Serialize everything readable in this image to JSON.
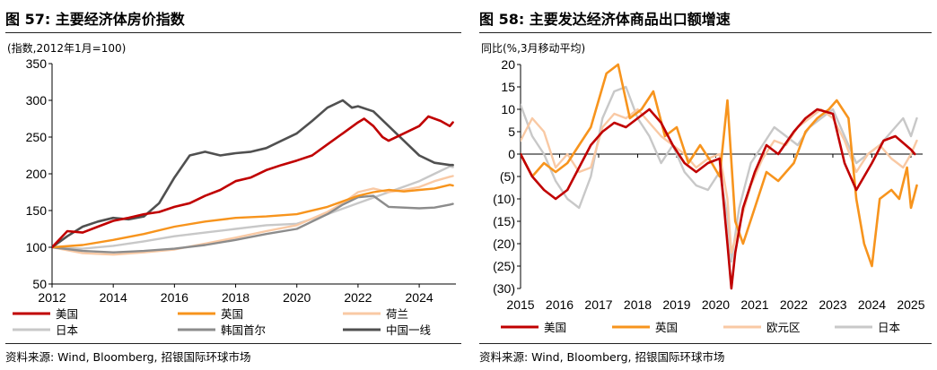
{
  "left": {
    "title": "图 57: 主要经济体房价指数",
    "source": "资料来源: Wind, Bloomberg, 招银国际环球市场",
    "chart_data": {
      "type": "line",
      "title": "主要经济体房价指数",
      "unit_label": "(指数,2012年1月=100)",
      "x_ticks": [
        "2012",
        "2014",
        "2016",
        "2018",
        "2020",
        "2022",
        "2024"
      ],
      "xlim": [
        2012,
        2025.2
      ],
      "y_ticks": [
        "50",
        "100",
        "150",
        "200",
        "250",
        "300",
        "350"
      ],
      "ylim": [
        50,
        350
      ],
      "legend_position": "bottom",
      "series": [
        {
          "name": "美国",
          "color": "#c00000",
          "width": 2.6,
          "x": [
            2012,
            2012.5,
            2013,
            2013.5,
            2014,
            2014.5,
            2015,
            2015.5,
            2016,
            2016.5,
            2017,
            2017.5,
            2018,
            2018.5,
            2019,
            2019.5,
            2020,
            2020.5,
            2021,
            2021.5,
            2022,
            2022.2,
            2022.5,
            2022.8,
            2023,
            2023.5,
            2024,
            2024.3,
            2024.7,
            2025,
            2025.1
          ],
          "values": [
            100,
            122,
            120,
            128,
            136,
            140,
            145,
            148,
            155,
            160,
            170,
            178,
            190,
            195,
            205,
            212,
            218,
            225,
            240,
            255,
            270,
            275,
            265,
            250,
            245,
            255,
            265,
            278,
            272,
            265,
            270
          ]
        },
        {
          "name": "英国",
          "color": "#f7941d",
          "width": 2.4,
          "x": [
            2012,
            2013,
            2014,
            2015,
            2016,
            2017,
            2018,
            2019,
            2020,
            2021,
            2022,
            2022.5,
            2023,
            2023.5,
            2024,
            2024.5,
            2025,
            2025.1
          ],
          "values": [
            100,
            103,
            110,
            118,
            128,
            135,
            140,
            142,
            145,
            155,
            170,
            175,
            178,
            176,
            178,
            180,
            185,
            184
          ]
        },
        {
          "name": "荷兰",
          "color": "#f9c9a4",
          "width": 2.4,
          "x": [
            2012,
            2013,
            2014,
            2015,
            2016,
            2017,
            2018,
            2019,
            2020,
            2021,
            2021.5,
            2022,
            2022.5,
            2023,
            2023.5,
            2024,
            2024.5,
            2025,
            2025.1
          ],
          "values": [
            100,
            92,
            90,
            93,
            97,
            105,
            113,
            122,
            130,
            148,
            160,
            175,
            180,
            175,
            178,
            182,
            190,
            196,
            197
          ]
        },
        {
          "name": "日本",
          "color": "#c8c8c8",
          "width": 2.4,
          "x": [
            2012,
            2013,
            2014,
            2015,
            2016,
            2017,
            2018,
            2019,
            2020,
            2021,
            2022,
            2023,
            2024,
            2024.5,
            2025,
            2025.1
          ],
          "values": [
            100,
            98,
            102,
            108,
            115,
            120,
            125,
            130,
            132,
            145,
            160,
            175,
            190,
            200,
            210,
            209
          ]
        },
        {
          "name": "韩国首尔",
          "color": "#8c8c8c",
          "width": 2.4,
          "x": [
            2012,
            2013,
            2014,
            2015,
            2016,
            2017,
            2018,
            2019,
            2020,
            2021,
            2021.5,
            2022,
            2022.5,
            2023,
            2024,
            2024.5,
            2025,
            2025.1
          ],
          "values": [
            100,
            95,
            93,
            95,
            98,
            103,
            110,
            118,
            125,
            145,
            158,
            168,
            170,
            155,
            153,
            154,
            158,
            159
          ]
        },
        {
          "name": "中国一线",
          "color": "#505050",
          "width": 2.6,
          "x": [
            2012,
            2012.5,
            2013,
            2013.5,
            2014,
            2014.5,
            2015,
            2015.5,
            2016,
            2016.5,
            2017,
            2017.5,
            2018,
            2018.5,
            2019,
            2019.5,
            2020,
            2020.5,
            2021,
            2021.5,
            2021.8,
            2022,
            2022.5,
            2023,
            2023.5,
            2024,
            2024.5,
            2025,
            2025.1
          ],
          "values": [
            100,
            115,
            128,
            135,
            140,
            138,
            142,
            160,
            195,
            225,
            230,
            225,
            228,
            230,
            235,
            245,
            255,
            272,
            290,
            300,
            290,
            292,
            285,
            265,
            245,
            225,
            215,
            212,
            212
          ]
        }
      ]
    }
  },
  "right": {
    "title": "图 58: 主要发达经济体商品出口额增速",
    "source": "资料来源: Wind, Bloomberg, 招银国际环球市场",
    "chart_data": {
      "type": "line",
      "title": "主要发达经济体商品出口额增速",
      "unit_label": "同比(%,3月移动平均)",
      "x_ticks": [
        "2015",
        "2016",
        "2017",
        "2018",
        "2019",
        "2020",
        "2021",
        "2022",
        "2023",
        "2024",
        "2025"
      ],
      "xlim": [
        2015,
        2025.3
      ],
      "y_ticks": [
        "20",
        "15",
        "10",
        "5",
        "0",
        "(5)",
        "(10)",
        "(15)",
        "(20)",
        "(25)",
        "(30)"
      ],
      "y_tick_values": [
        20,
        15,
        10,
        5,
        0,
        -5,
        -10,
        -15,
        -20,
        -25,
        -30
      ],
      "ylim": [
        -30,
        20
      ],
      "negative_tick_color": "#c00000",
      "legend_position": "bottom",
      "series": [
        {
          "name": "美国",
          "color": "#c00000",
          "width": 2.6,
          "x": [
            2015,
            2015.3,
            2015.6,
            2015.9,
            2016.2,
            2016.5,
            2016.8,
            2017.1,
            2017.4,
            2017.7,
            2018,
            2018.3,
            2018.6,
            2018.9,
            2019.2,
            2019.5,
            2019.8,
            2020.1,
            2020.3,
            2020.4,
            2020.5,
            2020.7,
            2021,
            2021.3,
            2021.6,
            2022,
            2022.3,
            2022.6,
            2023,
            2023.3,
            2023.6,
            2024,
            2024.3,
            2024.6,
            2025,
            2025.1
          ],
          "values": [
            0,
            -5,
            -8,
            -10,
            -8,
            -3,
            2,
            5,
            7,
            6,
            8,
            10,
            7,
            2,
            -2,
            -4,
            -2,
            -1,
            -20,
            -30,
            -22,
            -12,
            -4,
            2,
            0,
            5,
            8,
            10,
            9,
            -2,
            -8,
            -2,
            3,
            4,
            1,
            0
          ]
        },
        {
          "name": "英国",
          "color": "#f7941d",
          "width": 2.6,
          "x": [
            2015,
            2015.3,
            2015.6,
            2015.9,
            2016.2,
            2016.5,
            2016.8,
            2017,
            2017.2,
            2017.5,
            2017.8,
            2018.1,
            2018.4,
            2018.7,
            2019,
            2019.3,
            2019.6,
            2019.9,
            2020.1,
            2020.3,
            2020.5,
            2020.7,
            2021,
            2021.3,
            2021.6,
            2022,
            2022.3,
            2022.6,
            2022.9,
            2023.1,
            2023.4,
            2023.6,
            2023.8,
            2024,
            2024.2,
            2024.5,
            2024.7,
            2024.9,
            2025,
            2025.15
          ],
          "values": [
            0,
            -5,
            -2,
            -4,
            -2,
            2,
            6,
            12,
            18,
            20,
            8,
            10,
            14,
            4,
            6,
            -2,
            2,
            -2,
            -5,
            12,
            -15,
            -20,
            -12,
            -4,
            -6,
            -2,
            5,
            8,
            10,
            12,
            8,
            -10,
            -20,
            -25,
            -10,
            -8,
            -10,
            -3,
            -12,
            -7
          ]
        },
        {
          "name": "欧元区",
          "color": "#f9c9a4",
          "width": 2.4,
          "x": [
            2015,
            2015.3,
            2015.6,
            2015.9,
            2016.2,
            2016.5,
            2016.8,
            2017.1,
            2017.4,
            2017.7,
            2018,
            2018.3,
            2018.6,
            2018.9,
            2019.2,
            2019.5,
            2019.8,
            2020.1,
            2020.3,
            2020.4,
            2020.6,
            2020.9,
            2021.2,
            2021.5,
            2021.8,
            2022.1,
            2022.4,
            2022.7,
            2023,
            2023.3,
            2023.6,
            2023.9,
            2024.2,
            2024.5,
            2024.8,
            2025,
            2025.15
          ],
          "values": [
            3,
            8,
            5,
            -3,
            0,
            -4,
            -3,
            6,
            9,
            8,
            10,
            7,
            4,
            2,
            0,
            -3,
            -1,
            0,
            -10,
            -22,
            -16,
            -7,
            -1,
            3,
            2,
            6,
            8,
            10,
            8,
            3,
            -4,
            0,
            2,
            -1,
            -3,
            0,
            3
          ]
        },
        {
          "name": "日本",
          "color": "#c8c8c8",
          "width": 2.4,
          "x": [
            2015,
            2015.3,
            2015.6,
            2015.9,
            2016.2,
            2016.5,
            2016.8,
            2017.1,
            2017.4,
            2017.7,
            2018,
            2018.3,
            2018.6,
            2018.9,
            2019.2,
            2019.5,
            2019.8,
            2020.1,
            2020.3,
            2020.4,
            2020.6,
            2020.9,
            2021.2,
            2021.5,
            2021.8,
            2022.1,
            2022.4,
            2022.7,
            2023,
            2023.3,
            2023.6,
            2023.9,
            2024.2,
            2024.5,
            2024.8,
            2025,
            2025.15
          ],
          "values": [
            11,
            4,
            0,
            -6,
            -10,
            -12,
            -5,
            8,
            14,
            15,
            8,
            4,
            -2,
            2,
            -4,
            -7,
            -8,
            -4,
            -14,
            -24,
            -12,
            -2,
            2,
            6,
            4,
            2,
            6,
            8,
            10,
            4,
            -2,
            0,
            2,
            5,
            8,
            4,
            8
          ]
        }
      ]
    }
  }
}
